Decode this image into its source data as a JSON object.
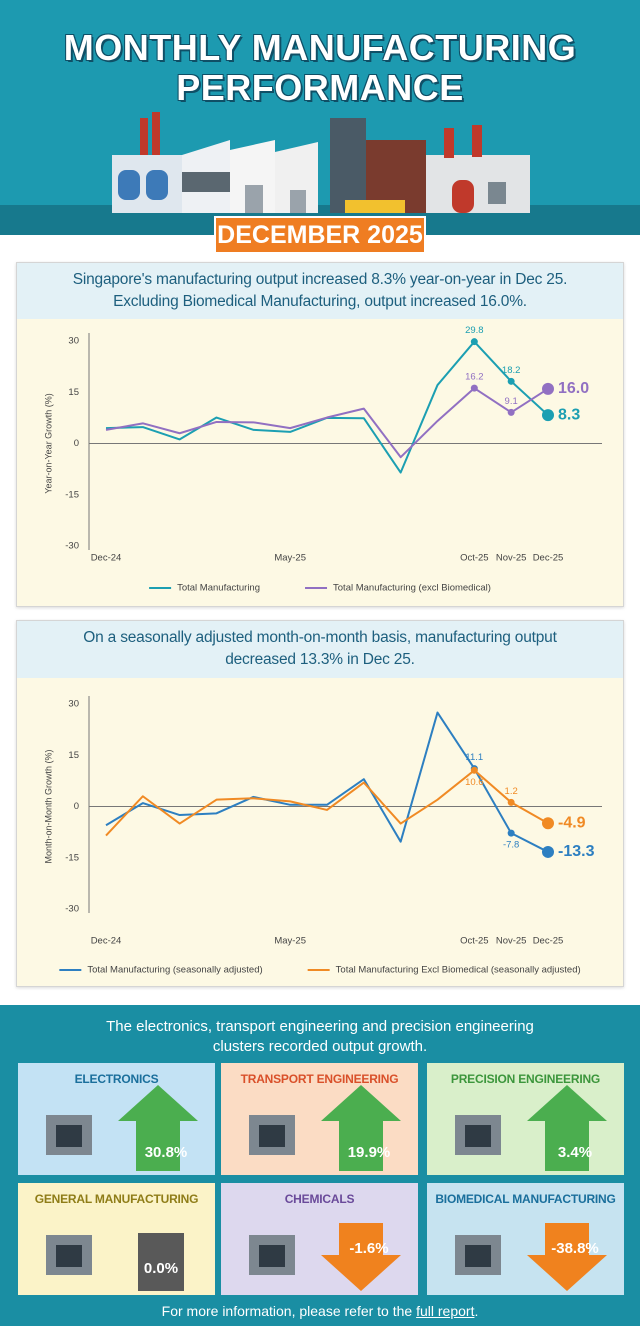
{
  "header": {
    "title": [
      "MONTHLY MANUFACTURING",
      "PERFORMANCE"
    ],
    "month": "DECEMBER 2025"
  },
  "chart_data": [
    {
      "type": "line",
      "title": [
        "Singapore's manufacturing output increased 8.3% year-on-year in Dec 25.",
        "Excluding Biomedical Manufacturing, output increased 16.0%."
      ],
      "y_label": "Year-on-Year Growth (%)",
      "categories": [
        "Dec-24",
        null,
        null,
        null,
        null,
        "May-25",
        null,
        null,
        null,
        null,
        "Oct-25",
        "Nov-25",
        "Dec-25"
      ],
      "ylim": [
        -30,
        30
      ],
      "yticks": [
        -30,
        -15,
        0,
        15,
        30
      ],
      "legend": "bottom",
      "series": [
        {
          "name": "Total Manufacturing",
          "color": "#1c9fb2",
          "values": [
            4.5,
            4.8,
            1.2,
            7.6,
            4.0,
            3.4,
            7.5,
            7.4,
            -8.5,
            17.1,
            29.8,
            18.2,
            8.3
          ],
          "value_labels": [
            null,
            null,
            null,
            null,
            null,
            null,
            null,
            null,
            null,
            null,
            "29.8",
            "18.2",
            "8.3"
          ]
        },
        {
          "name": "Total Manufacturing (excl Biomedical)",
          "color": "#9170c2",
          "values": [
            4.0,
            5.9,
            3.0,
            6.3,
            6.2,
            4.5,
            7.6,
            10.2,
            -4.0,
            6.6,
            16.2,
            9.1,
            16
          ],
          "value_labels": [
            null,
            null,
            null,
            null,
            null,
            null,
            null,
            null,
            null,
            null,
            "16.2",
            "9.1",
            "16.0"
          ]
        }
      ]
    },
    {
      "type": "line",
      "title": [
        "On a seasonally adjusted month-on-month basis, manufacturing output",
        "decreased 13.3% in Dec 25."
      ],
      "y_label": "Month-on-Month Growth (%)",
      "categories": [
        "Dec-24",
        null,
        null,
        null,
        null,
        "May-25",
        null,
        null,
        null,
        null,
        "Oct-25",
        "Nov-25",
        "Dec-25"
      ],
      "ylim": [
        -30,
        30
      ],
      "yticks": [
        -30,
        -15,
        0,
        15,
        30
      ],
      "legend": "bottom",
      "series": [
        {
          "name": "Total Manufacturing (seasonally adjusted)",
          "color": "#2d7fc1",
          "values": [
            -5.5,
            1.0,
            -2.5,
            -2.0,
            2.8,
            0.5,
            0.5,
            8.0,
            -10.3,
            27.5,
            11.1,
            -7.8,
            -13.3
          ],
          "value_labels": [
            null,
            null,
            null,
            null,
            null,
            null,
            null,
            null,
            null,
            null,
            "11.1",
            "-7.8",
            "-13.3"
          ]
        },
        {
          "name": "Total Manufacturing Excl Biomedical (seasonally adjusted)",
          "color": "#f08a24",
          "values": [
            -8.5,
            3.0,
            -5.0,
            2.0,
            2.4,
            1.5,
            -1.0,
            7.0,
            -5.0,
            2.0,
            10.6,
            1.2,
            -4.9
          ],
          "value_labels": [
            null,
            null,
            null,
            null,
            null,
            null,
            null,
            null,
            null,
            null,
            "10.6",
            "1.2",
            "-4.9"
          ]
        }
      ]
    }
  ],
  "clusters": {
    "title": [
      "The electronics, transport engineering and precision engineering",
      "clusters recorded output growth."
    ],
    "items": [
      {
        "name": "ELECTRONICS",
        "value": "30.8%",
        "trend": "up",
        "color": "#c3e2f4",
        "name_color": "#1a6f9c"
      },
      {
        "name": "TRANSPORT ENGINEERING",
        "value": "19.9%",
        "trend": "up",
        "color": "#fbdcc4",
        "name_color": "#d9502a"
      },
      {
        "name": "PRECISION ENGINEERING",
        "value": "3.4%",
        "trend": "up",
        "color": "#d9efca",
        "name_color": "#3c963c"
      },
      {
        "name": "GENERAL MANUFACTURING",
        "value": "0.0%",
        "trend": "flat",
        "color": "#fbf3c8",
        "name_color": "#8f7d18"
      },
      {
        "name": "CHEMICALS",
        "value": "-1.6%",
        "trend": "down",
        "color": "#ddd8ee",
        "name_color": "#6a4a9a"
      },
      {
        "name": "BIOMEDICAL MANUFACTURING",
        "value": "-38.8%",
        "trend": "down",
        "color": "#c6e3f0",
        "name_color": "#1a6f9c"
      }
    ]
  },
  "footer": {
    "text": "For more information, please refer to the",
    "link": "full report",
    "end": "."
  }
}
